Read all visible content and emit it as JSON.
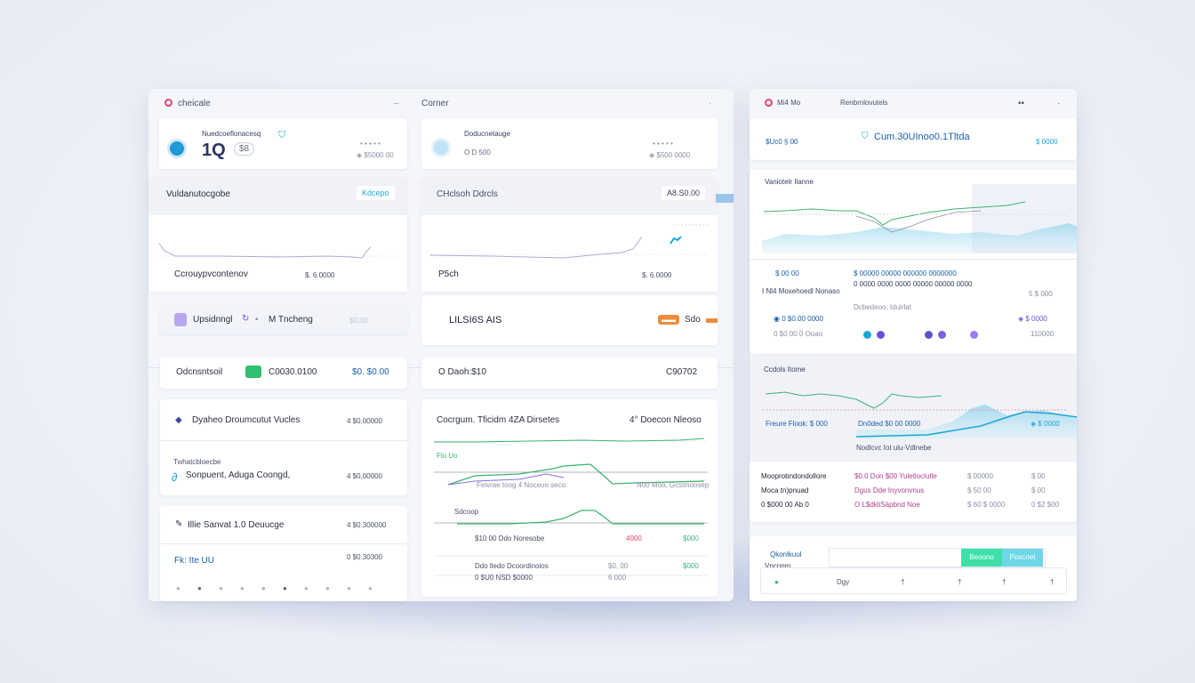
{
  "colors": {
    "accent": "#1aa7d6",
    "green": "#3cb371",
    "purple": "#6a4fd8",
    "pink": "#e8416a",
    "orange": "#f08c3c"
  },
  "left_window": {
    "brand": "cheicale",
    "panel2_title": "Corner",
    "stat_card_1": {
      "label": "Nuedcoeflonacesq",
      "value": "1Q",
      "sub_value": "$8",
      "meta_1": "• • • • •",
      "meta_2": "◈ $5000 00"
    },
    "stat_card_2": {
      "label": "Doducnetauge",
      "meta_1": "• • • • •",
      "meta_2": "◈ $500 0000",
      "small": "O D 500"
    },
    "metric_1": {
      "title": "Vuldanutocgobe",
      "badge": "Kdcepo",
      "footer_label": "Ccrouypvcontenov",
      "footer_value": "$. 6.0000"
    },
    "metric_2": {
      "title": "CHclsoh Ddrcls",
      "badge": "A8.S0.00",
      "footer_label": "P5ch",
      "footer_value": "$. 6.0000"
    },
    "row_1": {
      "label": "Upsidnngl",
      "label2": "M Tncheng",
      "value": "$0.00"
    },
    "row_2": {
      "label": "Odcnsntsoil",
      "value": "C0030.0100",
      "value2": "$0. $0.00"
    },
    "ticker": {
      "symbol": "LILSI6S AIS",
      "value": "Sdo"
    },
    "row_3": {
      "label": "O Daoh:$10",
      "value": "C90702"
    },
    "list_card": {
      "item_1": {
        "label": "Dyaheo Droumcutut Vucles",
        "value": "4 $0,00000"
      },
      "heading": "Twhatcbloecbe",
      "item_2": {
        "label": "Sonpuent, Aduga Coongd,",
        "value": "4 $0,00000"
      }
    },
    "list_card_2": {
      "item_1": {
        "label": "Illie Sanvat 1.0 Deuucge",
        "value": "4 $0.300000"
      },
      "item_2": {
        "label": "Fk: Ite UU",
        "value": "0 $0.30300"
      }
    },
    "big_chart": {
      "title": "Cocrgum. Tficidm 4ZA Dirsetes",
      "title_right": "4° Doecon Nleoso",
      "legend_1": "Flo Uo",
      "row_a": "Feivrae toog 4 Noceoo seco",
      "row_b": "N00  Moo, Gcssnoosep",
      "row_c": "Sdcoop",
      "row_d": "$10 00 Ddo Noresobe",
      "row_d_value": "4000",
      "row_d_value2": "$000",
      "row_e": "Ddo lledo Dcoordinoios",
      "row_e_value": "$0, 00",
      "row_e_value2": "$000",
      "row_f": "0 $U0 NSD $0000",
      "row_f_value": "6 000"
    },
    "footer_icons": [
      "●",
      "●",
      "●",
      "●",
      "●",
      "●",
      "●",
      "●",
      "●",
      "●"
    ]
  },
  "right_window": {
    "brand": "Mi4 Mo",
    "title": "Renbrnlovutels",
    "header_card": {
      "left_small": "$Uc0  § 00",
      "title": "Cum.30UInoo0.1Tltda",
      "right": "$ 0000"
    },
    "chart_1": {
      "title": "Vaniotelr Ilanne",
      "row_1": [
        " $ 00 00",
        "$ 00000 00000 000000 0000000"
      ],
      "row_2_label": "I Nl4 Moxehoedl Nonaso",
      "row_2_value": "0 0000 0000 0000 00000 00000 0000",
      "row_2_right": "5 $ 000",
      "row_3": "Dcbedeoo. Iduirlat",
      "row_4_left": "◉ 0 $0.00 0000",
      "row_4_right": "◈ $ 0000",
      "row_5_left": "0 $0.00  0 Ooao",
      "row_5_right": "110000"
    },
    "chart_2": {
      "title": "Ccdols Itome",
      "row_1_left": "Freure Flook: $ 000",
      "row_1_mid": "Dn0ded $0 00 0000",
      "row_1_right": "◈ $ 0000",
      "caption": "Nodlcvc Iot ulu-Vdlnebe"
    },
    "table": {
      "rows": [
        [
          "Mooprobndondollore",
          "$0.0 Don $00 Yuletloclutle",
          "$ 00000",
          "$ 00"
        ],
        [
          "Moca tn)pnuad",
          "Dgus Dde Inyvonvnus",
          "$ 50 00",
          "$ 00"
        ],
        [
          "0 $000 00 Ab 0",
          "O L$dkliSàpbnd Noe",
          "$ 60 $ 0000",
          "0 $2 $00"
        ]
      ]
    },
    "bottom": {
      "label_1": "Qkonlkuul",
      "label_2": "Vncnnm",
      "tab_1": "Beoono",
      "tab_2": "Poscnet",
      "controls": [
        "●",
        "Dgy",
        "†",
        "†",
        "†",
        "†"
      ]
    }
  }
}
